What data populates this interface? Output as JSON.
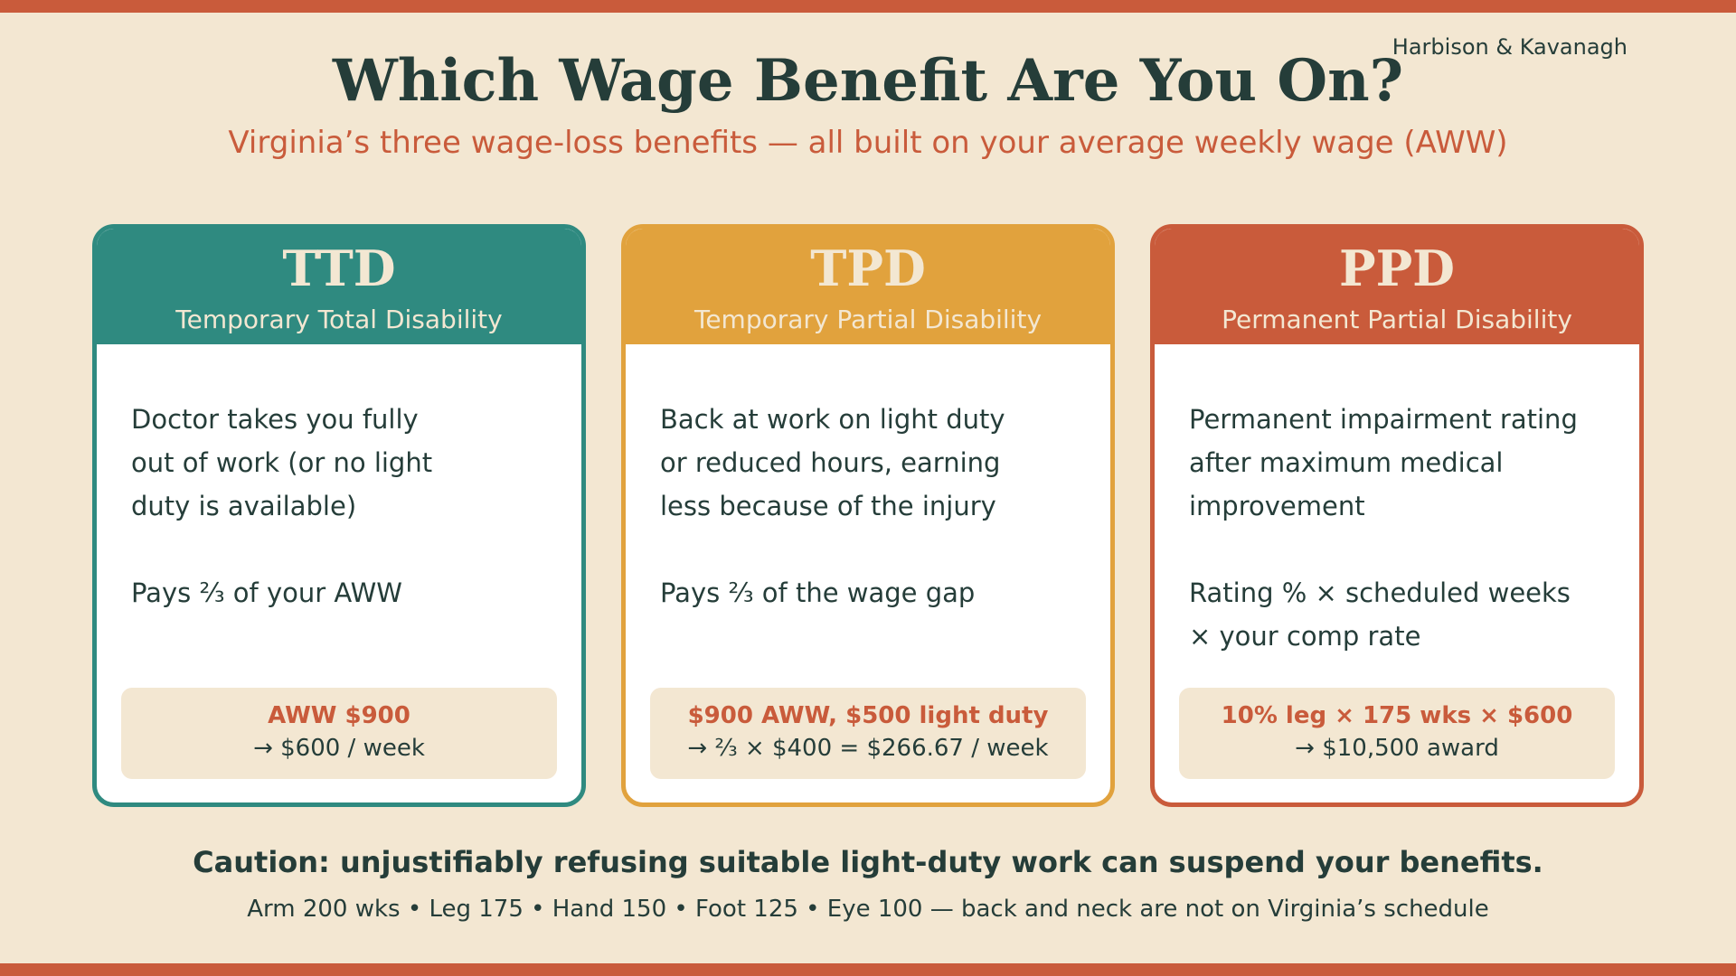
{
  "brand": "Harbison & Kavanagh",
  "title": "Which Wage Benefit Are You On?",
  "subtitle": "Virginia’s three wage-loss benefits — all built on your average weekly wage (AWW)",
  "colors": {
    "background": "#f3e7d2",
    "ink": "#253d39",
    "ttd": "#2f8a80",
    "tpd": "#e1a23d",
    "ppd": "#c95b3b"
  },
  "cards": [
    {
      "abbr": "TTD",
      "name": "Temporary Total Disability",
      "description": [
        "Doctor takes you fully",
        "out of work (or no light",
        "duty is available)"
      ],
      "pays": [
        "Pays ⅔ of your AWW"
      ],
      "example": {
        "headline": "AWW $900",
        "result": "→ $600 / week"
      }
    },
    {
      "abbr": "TPD",
      "name": "Temporary Partial Disability",
      "description": [
        "Back at work on light duty",
        "or reduced hours, earning",
        "less because of the injury"
      ],
      "pays": [
        "Pays ⅔ of the wage gap"
      ],
      "example": {
        "headline": "$900 AWW, $500 light duty",
        "result": "→ ⅔ × $400 = $266.67 / week"
      }
    },
    {
      "abbr": "PPD",
      "name": "Permanent Partial Disability",
      "description": [
        "Permanent impairment rating",
        "after maximum medical",
        "improvement"
      ],
      "pays": [
        "Rating % × scheduled weeks",
        "× your comp rate"
      ],
      "example": {
        "headline": "10% leg × 175 wks × $600",
        "result": "→ $10,500 award"
      }
    }
  ],
  "caution": "Caution: unjustifiably refusing suitable light-duty work can suspend your benefits.",
  "footnote": "Arm 200 wks • Leg 175 • Hand 150 • Foot 125 • Eye 100 — back and neck are not on Virginia’s schedule"
}
